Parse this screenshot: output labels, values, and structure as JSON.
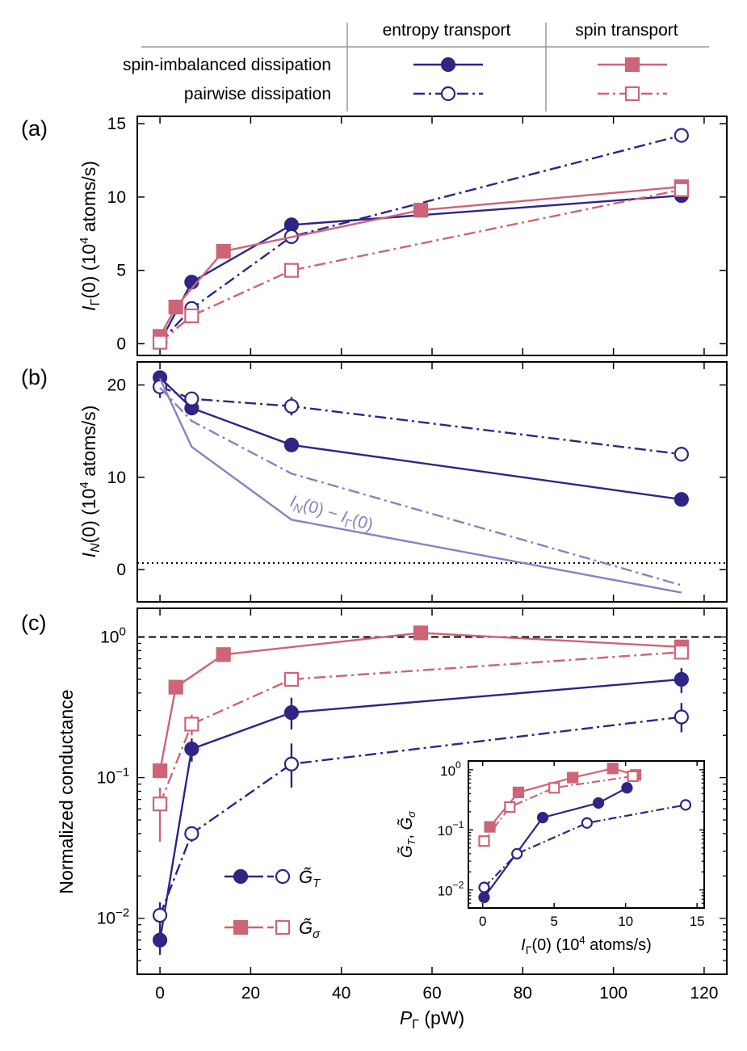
{
  "colors": {
    "navy": "#2e2585",
    "pink": "#cd6477",
    "lavender": "#8a80c2"
  },
  "legend_table": {
    "col_entropy": "entropy transport",
    "col_spin": "spin transport",
    "row_spin_imbalanced": "spin-imbalanced dissipation",
    "row_pairwise": "pairwise dissipation"
  },
  "panel_labels": {
    "a": "(a)",
    "b": "(b)",
    "c": "(c)"
  },
  "axis_labels": {
    "a_y": "I_Γ(0) (10^4 atoms/s)",
    "b_y": "I_N(0) (10^4 atoms/s)",
    "c_y": "Normalized conductance",
    "x": "P_Γ (pW)",
    "inset_x": "I_Γ(0) (10^4 atoms/s)",
    "inset_y": "G̃_T, G̃_σ"
  },
  "annotations": {
    "b_difference": "I_N(0) − I_Γ(0)",
    "c_legend_T": "G̃_T",
    "c_legend_sigma": "G̃_σ"
  },
  "chart_data": [
    {
      "type": "line",
      "panel": "(a)",
      "xlabel": "P_Γ (pW)",
      "ylabel": "I_Γ(0) (10^4 atoms/s)",
      "xlim": [
        -5,
        125
      ],
      "ylim": [
        -0.8,
        15.5
      ],
      "xticks": [
        0,
        20,
        40,
        60,
        80,
        100,
        120
      ],
      "yticks": [
        0,
        5,
        10,
        15
      ],
      "series": [
        {
          "name": "entropy transport, spin-imbalanced dissipation",
          "style": "navy-solid-filled-circle",
          "x": [
            0,
            7,
            29,
            115
          ],
          "y": [
            0.1,
            4.2,
            8.1,
            10.1
          ]
        },
        {
          "name": "entropy transport, pairwise dissipation",
          "style": "navy-dashdot-open-circle",
          "x": [
            0,
            7,
            29,
            115
          ],
          "y": [
            0.1,
            2.4,
            7.3,
            14.2
          ]
        },
        {
          "name": "spin transport, spin-imbalanced dissipation",
          "style": "pink-solid-filled-square",
          "x": [
            0,
            3.5,
            14,
            57.5,
            115
          ],
          "y": [
            0.5,
            2.5,
            6.3,
            9.1,
            10.7
          ]
        },
        {
          "name": "spin transport, pairwise dissipation",
          "style": "pink-dashdot-open-square",
          "x": [
            0,
            7,
            29,
            115
          ],
          "y": [
            0.1,
            1.9,
            5.0,
            10.5
          ]
        }
      ]
    },
    {
      "type": "line",
      "panel": "(b)",
      "xlabel": "P_Γ (pW)",
      "ylabel": "I_N(0) (10^4 atoms/s)",
      "xlim": [
        -5,
        125
      ],
      "ylim": [
        -3.5,
        22.5
      ],
      "xticks": [
        0,
        20,
        40,
        60,
        80,
        100,
        120
      ],
      "yticks": [
        0,
        10,
        20
      ],
      "reference_line_y": 0.7,
      "series": [
        {
          "name": "entropy transport, spin-imbalanced dissipation",
          "style": "navy-solid-filled-circle",
          "x": [
            0,
            7,
            29,
            115
          ],
          "y": [
            20.8,
            17.5,
            13.5,
            7.6
          ],
          "yerr": [
            0.6,
            0.6,
            0.7,
            0.4
          ]
        },
        {
          "name": "entropy transport, pairwise dissipation",
          "style": "navy-dashdot-open-circle",
          "x": [
            0,
            7,
            29,
            115
          ],
          "y": [
            19.8,
            18.5,
            17.7,
            12.5
          ],
          "yerr": [
            1.2,
            0.7,
            1.0,
            0.8
          ]
        },
        {
          "name": "I_N(0) − I_Γ(0), spin-imbalanced",
          "style": "lavender-solid",
          "x": [
            0,
            7,
            29,
            115
          ],
          "y": [
            20.7,
            13.3,
            5.4,
            -2.5
          ]
        },
        {
          "name": "I_N(0) − I_Γ(0), pairwise",
          "style": "lavender-dashdot",
          "x": [
            0,
            7,
            29,
            115
          ],
          "y": [
            19.7,
            16.1,
            10.4,
            -1.7
          ]
        }
      ]
    },
    {
      "type": "line",
      "panel": "(c)",
      "xlabel": "P_Γ (pW)",
      "ylabel": "Normalized conductance",
      "yscale": "log",
      "xlim": [
        -5,
        125
      ],
      "ylim": [
        0.004,
        1.6
      ],
      "xticks": [
        0,
        20,
        40,
        60,
        80,
        100,
        120
      ],
      "yticks": [
        0.01,
        0.1,
        1
      ],
      "ytick_labels": [
        "10^-2",
        "10^-1",
        "10^0"
      ],
      "reference_line_y": 1.0,
      "legend": [
        "G̃_T",
        "G̃_σ"
      ],
      "series": [
        {
          "name": "G̃_T spin-imbalanced",
          "style": "navy-solid-filled-circle",
          "x": [
            0,
            7,
            29,
            115
          ],
          "y": [
            0.007,
            0.16,
            0.29,
            0.5
          ],
          "ylo": [
            0.0055,
            0.13,
            0.22,
            0.4
          ],
          "yhi": [
            0.0085,
            0.19,
            0.37,
            0.6
          ]
        },
        {
          "name": "G̃_T pairwise",
          "style": "navy-dashdot-open-circle",
          "x": [
            0,
            7,
            29,
            115
          ],
          "y": [
            0.0105,
            0.04,
            0.125,
            0.27
          ],
          "ylo": [
            0.0085,
            0.035,
            0.085,
            0.21
          ],
          "yhi": [
            0.013,
            0.045,
            0.175,
            0.34
          ]
        },
        {
          "name": "G̃_σ spin-imbalanced",
          "style": "pink-solid-filled-square",
          "x": [
            0,
            3.5,
            14,
            57.5,
            115
          ],
          "y": [
            0.112,
            0.44,
            0.75,
            1.07,
            0.85
          ]
        },
        {
          "name": "G̃_σ pairwise",
          "style": "pink-dashdot-open-square",
          "x": [
            0,
            7,
            29,
            115
          ],
          "y": [
            0.065,
            0.24,
            0.5,
            0.78
          ],
          "ylo": [
            0.035,
            0.2,
            0.45,
            0.7
          ],
          "yhi": [
            0.085,
            0.28,
            0.55,
            0.86
          ]
        }
      ]
    },
    {
      "type": "line",
      "panel": "(c) inset",
      "xlabel": "I_Γ(0) (10^4 atoms/s)",
      "ylabel": "G̃_T, G̃_σ",
      "yscale": "log",
      "xlim": [
        -1,
        15.5
      ],
      "ylim": [
        0.005,
        1.4
      ],
      "xticks": [
        0,
        5,
        10,
        15
      ],
      "yticks": [
        0.01,
        0.1,
        1
      ],
      "ytick_labels": [
        "10^-2",
        "10^-1",
        "10^0"
      ],
      "series": [
        {
          "name": "G̃_T spin-imbalanced",
          "style": "navy-solid-filled-circle",
          "x": [
            0.1,
            4.2,
            8.1,
            10.1
          ],
          "y": [
            0.0075,
            0.16,
            0.28,
            0.5
          ]
        },
        {
          "name": "G̃_T pairwise",
          "style": "navy-dashdot-open-circle",
          "x": [
            0.1,
            2.4,
            7.3,
            14.2
          ],
          "y": [
            0.011,
            0.04,
            0.13,
            0.26
          ]
        },
        {
          "name": "G̃_σ spin-imbalanced",
          "style": "pink-solid-filled-square",
          "x": [
            0.5,
            2.5,
            6.3,
            9.1,
            10.7
          ],
          "y": [
            0.112,
            0.42,
            0.74,
            1.05,
            0.82
          ]
        },
        {
          "name": "G̃_σ pairwise",
          "style": "pink-dashdot-open-square",
          "x": [
            0.1,
            1.9,
            5.0,
            10.5
          ],
          "y": [
            0.065,
            0.24,
            0.5,
            0.78
          ]
        }
      ]
    }
  ]
}
